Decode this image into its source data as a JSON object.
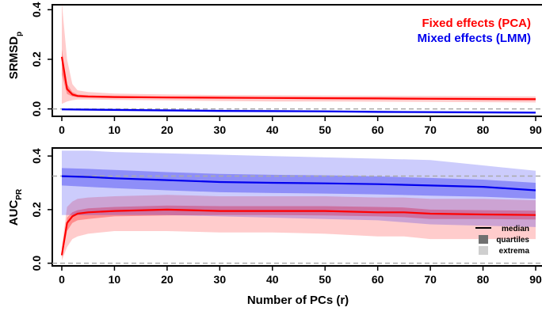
{
  "chart_data": [
    {
      "type": "line",
      "title": "",
      "xlabel": "",
      "ylabel": "SRMSD",
      "ylabel_sub": "p",
      "xlim": [
        0,
        90
      ],
      "ylim": [
        -0.03,
        0.42
      ],
      "yticks": [
        0.0,
        0.2,
        0.4
      ],
      "ytick_labels": [
        "0.0",
        "0.2",
        "0.4"
      ],
      "xticks": [
        0,
        10,
        20,
        30,
        40,
        50,
        60,
        70,
        80,
        90
      ],
      "xtick_labels": [
        "0",
        "10",
        "20",
        "30",
        "40",
        "50",
        "60",
        "70",
        "80",
        "90"
      ],
      "reference_line": 0.0,
      "legend": {
        "placement": "top-right"
      },
      "series": [
        {
          "name": "Fixed effects (PCA)",
          "color": "#ff0000",
          "x": [
            0,
            1,
            2,
            3,
            5,
            10,
            20,
            30,
            40,
            50,
            60,
            70,
            80,
            90
          ],
          "median": [
            0.21,
            0.08,
            0.058,
            0.052,
            0.05,
            0.048,
            0.046,
            0.045,
            0.044,
            0.043,
            0.042,
            0.041,
            0.04,
            0.039
          ],
          "q_low": [
            0.14,
            0.06,
            0.05,
            0.047,
            0.045,
            0.044,
            0.043,
            0.042,
            0.041,
            0.04,
            0.039,
            0.038,
            0.037,
            0.036
          ],
          "q_high": [
            0.24,
            0.1,
            0.068,
            0.058,
            0.054,
            0.052,
            0.05,
            0.049,
            0.048,
            0.047,
            0.046,
            0.045,
            0.044,
            0.043
          ],
          "min": [
            0.02,
            0.03,
            0.035,
            0.038,
            0.038,
            0.036,
            0.034,
            0.032,
            0.03,
            0.03,
            0.029,
            0.028,
            0.027,
            0.026
          ],
          "max": [
            0.43,
            0.2,
            0.1,
            0.075,
            0.068,
            0.062,
            0.058,
            0.056,
            0.055,
            0.054,
            0.053,
            0.052,
            0.051,
            0.05
          ]
        },
        {
          "name": "Mixed effects (LMM)",
          "color": "#0000ee",
          "x": [
            0,
            10,
            20,
            30,
            40,
            50,
            60,
            70,
            80,
            90
          ],
          "median": [
            -0.002,
            -0.004,
            -0.006,
            -0.008,
            -0.009,
            -0.01,
            -0.012,
            -0.013,
            -0.014,
            -0.015
          ],
          "q_low": [
            -0.004,
            -0.006,
            -0.008,
            -0.01,
            -0.011,
            -0.012,
            -0.014,
            -0.015,
            -0.016,
            -0.017
          ],
          "q_high": [
            0.0,
            -0.002,
            -0.004,
            -0.006,
            -0.007,
            -0.008,
            -0.01,
            -0.011,
            -0.012,
            -0.013
          ],
          "min": [
            -0.007,
            -0.009,
            -0.011,
            -0.013,
            -0.014,
            -0.015,
            -0.017,
            -0.018,
            -0.019,
            -0.02
          ],
          "max": [
            0.003,
            0.001,
            -0.001,
            -0.003,
            -0.004,
            -0.005,
            -0.007,
            -0.008,
            -0.009,
            -0.01
          ]
        }
      ]
    },
    {
      "type": "line",
      "title": "",
      "xlabel": "Number of PCs (r)",
      "ylabel": "AUC",
      "ylabel_sub": "PR",
      "xlim": [
        0,
        90
      ],
      "ylim": [
        -0.01,
        0.43
      ],
      "yticks": [
        0.0,
        0.2,
        0.4
      ],
      "ytick_labels": [
        "0.0",
        "0.2",
        "0.4"
      ],
      "xticks": [
        0,
        10,
        20,
        30,
        40,
        50,
        60,
        70,
        80,
        90
      ],
      "xtick_labels": [
        "0",
        "10",
        "20",
        "30",
        "40",
        "50",
        "60",
        "70",
        "80",
        "90"
      ],
      "reference_lines": [
        0.0,
        0.325
      ],
      "legend": {
        "placement": "bottom-right",
        "items": [
          {
            "label": "median",
            "kind": "line"
          },
          {
            "label": "quartiles",
            "kind": "dark-box"
          },
          {
            "label": "extrema",
            "kind": "light-box"
          }
        ]
      },
      "series": [
        {
          "name": "Fixed effects (PCA)",
          "color": "#ff0000",
          "x": [
            0,
            1,
            2,
            3,
            5,
            10,
            20,
            30,
            40,
            50,
            60,
            65,
            70,
            80,
            90
          ],
          "median": [
            0.03,
            0.15,
            0.175,
            0.185,
            0.19,
            0.195,
            0.2,
            0.195,
            0.195,
            0.195,
            0.19,
            0.19,
            0.185,
            0.182,
            0.18
          ],
          "q_low": [
            0.02,
            0.12,
            0.15,
            0.16,
            0.165,
            0.175,
            0.178,
            0.18,
            0.18,
            0.178,
            0.175,
            0.172,
            0.165,
            0.165,
            0.163
          ],
          "q_high": [
            0.04,
            0.17,
            0.19,
            0.198,
            0.205,
            0.21,
            0.215,
            0.213,
            0.213,
            0.213,
            0.21,
            0.208,
            0.2,
            0.198,
            0.196
          ],
          "min": [
            0.01,
            0.06,
            0.09,
            0.1,
            0.11,
            0.12,
            0.12,
            0.115,
            0.115,
            0.11,
            0.1,
            0.1,
            0.09,
            0.09,
            0.09
          ],
          "max": [
            0.06,
            0.21,
            0.23,
            0.24,
            0.245,
            0.25,
            0.255,
            0.25,
            0.25,
            0.25,
            0.245,
            0.245,
            0.24,
            0.24,
            0.235
          ]
        },
        {
          "name": "Mixed effects (LMM)",
          "color": "#0000ee",
          "x": [
            0,
            5,
            10,
            20,
            30,
            40,
            50,
            60,
            70,
            80,
            90
          ],
          "median": [
            0.325,
            0.322,
            0.317,
            0.31,
            0.303,
            0.3,
            0.298,
            0.295,
            0.29,
            0.285,
            0.272
          ],
          "q_low": [
            0.29,
            0.285,
            0.28,
            0.272,
            0.265,
            0.262,
            0.26,
            0.257,
            0.252,
            0.248,
            0.24
          ],
          "q_high": [
            0.355,
            0.352,
            0.348,
            0.34,
            0.333,
            0.33,
            0.328,
            0.324,
            0.318,
            0.312,
            0.3
          ],
          "min": [
            0.18,
            0.18,
            0.18,
            0.18,
            0.175,
            0.17,
            0.165,
            0.16,
            0.145,
            0.14,
            0.135
          ],
          "max": [
            0.42,
            0.42,
            0.415,
            0.41,
            0.405,
            0.4,
            0.395,
            0.39,
            0.385,
            0.365,
            0.345
          ]
        }
      ]
    }
  ]
}
